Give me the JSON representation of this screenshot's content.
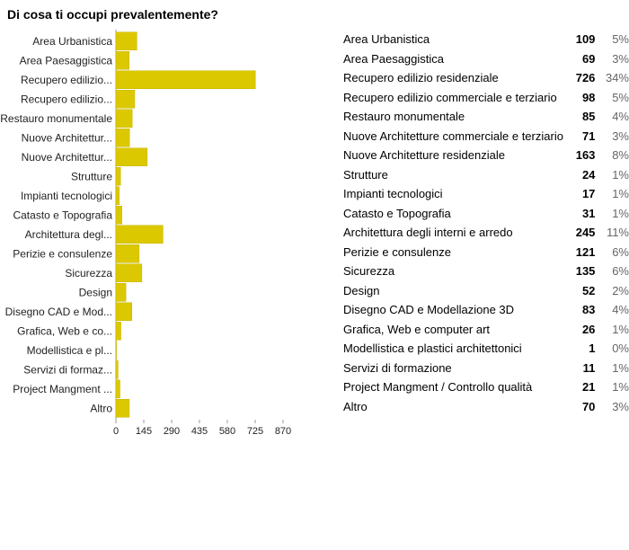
{
  "title": "Di cosa ti occupi prevalentemente?",
  "colors": {
    "bar": "#dcc800",
    "bar_stroke": "#c7b400",
    "axis": "#999999",
    "text": "#222222"
  },
  "chart_data": {
    "type": "bar",
    "orientation": "horizontal",
    "categories": [
      "Area Urbanistica",
      "Area Paesaggistica",
      "Recupero edilizio...",
      "Recupero edilizio...",
      "Restauro monumentale",
      "Nuove Architettur...",
      "Nuove Architettur...",
      "Strutture",
      "Impianti tecnologici",
      "Catasto e Topografia",
      "Architettura degl...",
      "Perizie e consulenze",
      "Sicurezza",
      "Design",
      "Disegno CAD e Mod...",
      "Grafica, Web e co...",
      "Modellistica e pl...",
      "Servizi di formaz...",
      "Project Mangment ...",
      "Altro"
    ],
    "values": [
      109,
      69,
      726,
      98,
      85,
      71,
      163,
      24,
      17,
      31,
      245,
      121,
      135,
      52,
      83,
      26,
      1,
      11,
      21,
      70
    ],
    "xlim": [
      0,
      870
    ],
    "xticks": [
      "0",
      "145",
      "290",
      "435",
      "580",
      "725",
      "870"
    ],
    "grid": false,
    "legend": "none"
  },
  "summary": [
    {
      "label": "Area Urbanistica",
      "count": "109",
      "pct": "5%"
    },
    {
      "label": "Area Paesaggistica",
      "count": "69",
      "pct": "3%"
    },
    {
      "label": "Recupero edilizio residenziale",
      "count": "726",
      "pct": "34%"
    },
    {
      "label": "Recupero edilizio commerciale e terziario",
      "count": "98",
      "pct": "5%"
    },
    {
      "label": "Restauro monumentale",
      "count": "85",
      "pct": "4%"
    },
    {
      "label": "Nuove Architetture commerciale e terziario",
      "count": "71",
      "pct": "3%"
    },
    {
      "label": "Nuove Architetture residenziale",
      "count": "163",
      "pct": "8%"
    },
    {
      "label": "Strutture",
      "count": "24",
      "pct": "1%"
    },
    {
      "label": "Impianti tecnologici",
      "count": "17",
      "pct": "1%"
    },
    {
      "label": "Catasto e Topografia",
      "count": "31",
      "pct": "1%"
    },
    {
      "label": "Architettura degli interni e arredo",
      "count": "245",
      "pct": "11%"
    },
    {
      "label": "Perizie e consulenze",
      "count": "121",
      "pct": "6%"
    },
    {
      "label": "Sicurezza",
      "count": "135",
      "pct": "6%"
    },
    {
      "label": "Design",
      "count": "52",
      "pct": "2%"
    },
    {
      "label": "Disegno CAD e Modellazione 3D",
      "count": "83",
      "pct": "4%"
    },
    {
      "label": "Grafica, Web e computer art",
      "count": "26",
      "pct": "1%"
    },
    {
      "label": "Modellistica e plastici architettonici",
      "count": "1",
      "pct": "0%"
    },
    {
      "label": "Servizi di formazione",
      "count": "11",
      "pct": "1%"
    },
    {
      "label": "Project Mangment / Controllo qualità",
      "count": "21",
      "pct": "1%"
    },
    {
      "label": "Altro",
      "count": "70",
      "pct": "3%"
    }
  ]
}
